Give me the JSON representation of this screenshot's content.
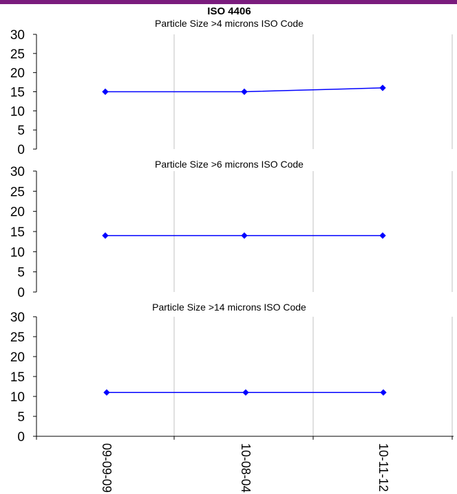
{
  "colors": {
    "top_bar": "#7a1c7d",
    "series": "#0000ff",
    "grid": "#c0c0c0",
    "axis": "#000000"
  },
  "chart_data": {
    "title": "ISO 4406",
    "charts": [
      {
        "type": "line",
        "subtitle": "Particle Size >4 microns ISO Code",
        "x": [
          "09-09-09",
          "10-08-04",
          "10-11-12"
        ],
        "values": [
          15,
          15,
          16
        ],
        "ylim": [
          0,
          30
        ],
        "yticks": [
          0,
          5,
          10,
          15,
          20,
          25,
          30
        ],
        "grid": "vertical",
        "marker": "diamond"
      },
      {
        "type": "line",
        "subtitle": "Particle Size >6 microns ISO Code",
        "x": [
          "09-09-09",
          "10-08-04",
          "10-11-12"
        ],
        "values": [
          14,
          14,
          14
        ],
        "ylim": [
          0,
          30
        ],
        "yticks": [
          0,
          5,
          10,
          15,
          20,
          25,
          30
        ],
        "grid": "vertical",
        "marker": "diamond"
      },
      {
        "type": "line",
        "subtitle": "Particle Size >14 microns ISO Code",
        "x": [
          "09-09-09",
          "10-08-04",
          "10-11-12"
        ],
        "values": [
          11,
          11,
          11
        ],
        "ylim": [
          0,
          30
        ],
        "yticks": [
          0,
          5,
          10,
          15,
          20,
          25,
          30
        ],
        "grid": "vertical",
        "marker": "diamond"
      }
    ],
    "xlabels": [
      "09-09-09",
      "10-08-04",
      "10-11-12"
    ]
  }
}
